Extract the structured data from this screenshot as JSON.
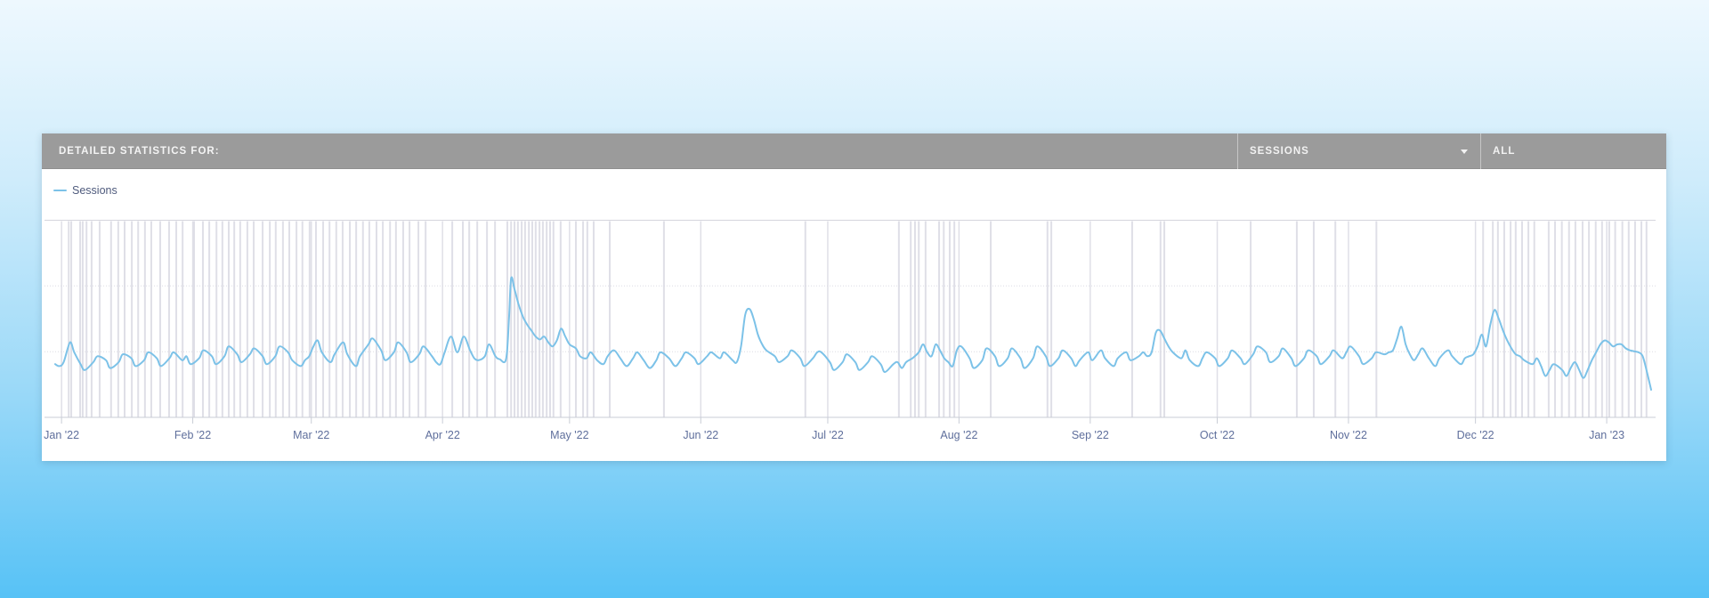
{
  "header": {
    "title": "DETAILED STATISTICS FOR:",
    "metric_dropdown": {
      "value": "SESSIONS"
    },
    "range_dropdown": {
      "value": "ALL"
    }
  },
  "legend": {
    "items": [
      {
        "label": "Sessions",
        "color": "#7CC2E8"
      }
    ]
  },
  "colors": {
    "series_line": "#7CC2E8",
    "header_bg": "#9B9B9B",
    "header_text": "#F2F2F2",
    "axis_label": "#5F6F9C",
    "legend_text": "#4F5B7D",
    "grid_event_line": "#DFDFE7",
    "grid_h_dotted": "#DCDCE4",
    "plot_border": "#D5D5DD",
    "axis_line": "#C9CDD6"
  },
  "chart_data": {
    "type": "line",
    "title": "",
    "xlabel": "",
    "ylabel": "",
    "legend_position": "top-left",
    "grid": "on",
    "y_axis": {
      "min": 0,
      "max": 100,
      "labels_visible": false,
      "gridline_values": [
        33.3,
        66.7
      ]
    },
    "x_axis": {
      "tick_labels": [
        "Jan '22",
        "Feb '22",
        "Mar '22",
        "Apr '22",
        "May '22",
        "Jun '22",
        "Jul '22",
        "Aug '22",
        "Sep '22",
        "Oct '22",
        "Nov '22",
        "Dec '22",
        "Jan '23"
      ],
      "tick_days": [
        1.5,
        32.5,
        60.5,
        91.5,
        121.5,
        152.5,
        182.5,
        213.5,
        244.5,
        274.5,
        305.5,
        335.5,
        366.5
      ],
      "domain_days": [
        0,
        377.7
      ]
    },
    "event_marker_days": [
      3.2,
      3.8,
      5.9,
      6.5,
      7.4,
      8.6,
      10.5,
      13.2,
      14.9,
      16.4,
      18.1,
      19.6,
      21.2,
      22.7,
      24.8,
      26.9,
      28.6,
      30.1,
      32.8,
      34.9,
      36.4,
      38.1,
      39.5,
      41,
      42.3,
      43.7,
      45.4,
      46.9,
      49,
      50.7,
      52.1,
      53.8,
      55.3,
      57,
      58.4,
      60.1,
      61.6,
      63.3,
      64.8,
      66.4,
      67.9,
      69.6,
      71.1,
      72.7,
      74.2,
      75.9,
      77.4,
      79.1,
      80.5,
      82.2,
      83.7,
      85.8,
      87.5,
      93.8,
      96.3,
      97.8,
      99.7,
      102,
      103.9,
      106.8,
      107.7,
      108.5,
      109.3,
      110.2,
      111,
      111.9,
      112.7,
      113.5,
      114.4,
      115.2,
      116.1,
      116.9,
      117.7,
      119.4,
      123,
      124.7,
      125.7,
      127.2,
      131,
      143.8,
      177.2,
      199.3,
      202.1,
      203.1,
      204,
      205.6,
      208.8,
      209.9,
      211.3,
      212.4,
      221,
      234.4,
      235.3,
      254.4,
      261.1,
      262,
      282.4,
      293.3,
      297.3,
      302.4,
      312.1,
      337.3,
      339.6,
      340.8,
      342.3,
      343.8,
      345,
      346.5,
      348,
      349.4,
      352.8,
      354.3,
      355.9,
      357.6,
      359.1,
      360.8,
      362.3,
      363.9,
      365.4,
      367.1,
      368.5,
      370.2,
      371.7,
      373.2,
      374.7,
      375.9
    ],
    "series": [
      {
        "name": "Sessions",
        "color": "#7CC2E8",
        "points": [
          [
            0,
            27
          ],
          [
            1,
            26
          ],
          [
            2,
            28
          ],
          [
            3.5,
            38
          ],
          [
            4.5,
            33
          ],
          [
            6,
            27
          ],
          [
            7,
            24
          ],
          [
            9,
            28
          ],
          [
            10,
            31
          ],
          [
            12,
            29
          ],
          [
            13,
            25
          ],
          [
            15,
            28
          ],
          [
            16,
            32
          ],
          [
            18,
            30
          ],
          [
            19,
            26
          ],
          [
            21,
            29
          ],
          [
            22,
            33
          ],
          [
            24,
            30
          ],
          [
            25,
            26
          ],
          [
            27,
            30
          ],
          [
            28,
            33
          ],
          [
            30,
            29
          ],
          [
            31,
            31
          ],
          [
            32,
            27
          ],
          [
            34,
            30
          ],
          [
            35,
            34
          ],
          [
            37,
            31
          ],
          [
            38,
            27
          ],
          [
            40,
            31
          ],
          [
            41,
            36
          ],
          [
            43,
            32
          ],
          [
            44,
            28
          ],
          [
            46,
            32
          ],
          [
            47,
            35
          ],
          [
            49,
            31
          ],
          [
            50,
            27
          ],
          [
            52,
            31
          ],
          [
            53,
            36
          ],
          [
            55,
            33
          ],
          [
            56,
            29
          ],
          [
            58,
            26
          ],
          [
            59,
            29
          ],
          [
            60,
            31
          ],
          [
            61,
            36
          ],
          [
            62,
            39
          ],
          [
            63,
            33
          ],
          [
            65,
            28
          ],
          [
            66,
            32
          ],
          [
            68,
            38
          ],
          [
            69,
            32
          ],
          [
            71,
            26
          ],
          [
            72,
            31
          ],
          [
            74,
            37
          ],
          [
            75,
            40
          ],
          [
            77,
            34
          ],
          [
            78,
            29
          ],
          [
            80,
            33
          ],
          [
            81,
            38
          ],
          [
            83,
            33
          ],
          [
            84,
            28
          ],
          [
            86,
            32
          ],
          [
            87,
            36
          ],
          [
            89,
            31
          ],
          [
            90,
            28
          ],
          [
            91,
            27
          ],
          [
            92,
            33
          ],
          [
            93.5,
            41
          ],
          [
            95,
            33
          ],
          [
            96.5,
            41
          ],
          [
            98,
            34
          ],
          [
            99,
            30
          ],
          [
            100,
            29
          ],
          [
            101.5,
            31
          ],
          [
            102.5,
            37
          ],
          [
            104,
            31
          ],
          [
            105,
            29.5
          ],
          [
            106.5,
            29.5
          ],
          [
            107.2,
            50
          ],
          [
            107.7,
            70.5
          ],
          [
            108.5,
            65
          ],
          [
            109.5,
            57
          ],
          [
            110.5,
            51
          ],
          [
            111.5,
            47
          ],
          [
            112.5,
            44
          ],
          [
            113.5,
            41
          ],
          [
            114.5,
            39.5
          ],
          [
            115.5,
            41
          ],
          [
            116.5,
            38
          ],
          [
            117.5,
            36
          ],
          [
            118.5,
            39
          ],
          [
            119.5,
            45
          ],
          [
            120.5,
            41
          ],
          [
            121.5,
            37
          ],
          [
            123,
            35
          ],
          [
            124,
            31
          ],
          [
            125.5,
            30
          ],
          [
            126.5,
            33
          ],
          [
            128,
            29
          ],
          [
            129.5,
            27
          ],
          [
            130.5,
            31
          ],
          [
            132,
            34
          ],
          [
            133.5,
            30
          ],
          [
            135,
            26
          ],
          [
            136.5,
            30
          ],
          [
            137.5,
            33
          ],
          [
            139,
            29
          ],
          [
            140.5,
            25
          ],
          [
            142,
            29
          ],
          [
            143,
            33
          ],
          [
            145,
            30
          ],
          [
            146.5,
            26
          ],
          [
            148,
            30
          ],
          [
            149,
            33
          ],
          [
            151,
            30
          ],
          [
            152,
            27
          ],
          [
            154,
            31
          ],
          [
            155,
            33
          ],
          [
            157,
            30
          ],
          [
            158,
            33
          ],
          [
            160,
            29
          ],
          [
            161,
            28
          ],
          [
            162,
            36
          ],
          [
            163,
            52
          ],
          [
            164,
            55
          ],
          [
            165,
            50
          ],
          [
            166,
            42
          ],
          [
            167,
            37
          ],
          [
            168,
            34
          ],
          [
            170,
            31
          ],
          [
            171,
            28
          ],
          [
            173,
            31
          ],
          [
            174,
            34
          ],
          [
            176,
            30
          ],
          [
            177,
            26
          ],
          [
            179,
            30
          ],
          [
            180,
            33
          ],
          [
            181,
            33
          ],
          [
            183,
            28
          ],
          [
            184,
            24
          ],
          [
            186,
            28
          ],
          [
            187,
            32
          ],
          [
            189,
            28
          ],
          [
            190,
            24
          ],
          [
            192,
            28
          ],
          [
            193,
            31
          ],
          [
            195,
            27
          ],
          [
            196,
            23
          ],
          [
            198,
            27
          ],
          [
            199,
            28
          ],
          [
            200,
            25
          ],
          [
            201,
            28
          ],
          [
            202.5,
            30
          ],
          [
            204,
            33
          ],
          [
            205,
            37
          ],
          [
            206,
            33
          ],
          [
            207,
            31
          ],
          [
            208,
            37
          ],
          [
            209,
            34
          ],
          [
            210,
            30
          ],
          [
            211,
            28
          ],
          [
            212,
            26
          ],
          [
            213,
            34
          ],
          [
            214,
            36
          ],
          [
            216,
            30
          ],
          [
            217,
            25
          ],
          [
            219,
            29
          ],
          [
            220,
            35
          ],
          [
            222,
            31
          ],
          [
            223,
            26
          ],
          [
            225,
            30
          ],
          [
            226,
            35
          ],
          [
            228,
            30
          ],
          [
            229,
            25
          ],
          [
            231,
            30
          ],
          [
            232,
            36
          ],
          [
            234,
            31
          ],
          [
            235,
            26
          ],
          [
            237,
            30
          ],
          [
            238,
            34
          ],
          [
            240,
            30
          ],
          [
            241,
            26
          ],
          [
            242,
            29
          ],
          [
            244,
            33
          ],
          [
            245,
            29
          ],
          [
            247,
            34
          ],
          [
            248,
            30
          ],
          [
            250,
            26
          ],
          [
            251,
            30
          ],
          [
            253,
            33
          ],
          [
            254,
            29
          ],
          [
            256,
            31
          ],
          [
            257,
            33
          ],
          [
            258,
            31
          ],
          [
            259,
            33
          ],
          [
            260,
            43
          ],
          [
            261,
            44
          ],
          [
            262,
            40
          ],
          [
            263,
            36
          ],
          [
            264,
            33
          ],
          [
            266,
            30
          ],
          [
            267,
            34
          ],
          [
            268,
            29
          ],
          [
            270,
            26
          ],
          [
            271,
            30
          ],
          [
            272,
            33
          ],
          [
            274,
            30
          ],
          [
            275,
            26
          ],
          [
            277,
            30
          ],
          [
            278,
            34
          ],
          [
            280,
            30
          ],
          [
            281,
            27
          ],
          [
            283,
            32
          ],
          [
            284,
            36
          ],
          [
            286,
            33
          ],
          [
            287,
            28
          ],
          [
            289,
            31
          ],
          [
            290,
            35
          ],
          [
            292,
            30
          ],
          [
            293,
            26
          ],
          [
            295,
            30
          ],
          [
            296,
            34
          ],
          [
            298,
            31
          ],
          [
            299,
            27
          ],
          [
            301,
            31
          ],
          [
            302,
            34
          ],
          [
            304,
            30
          ],
          [
            305,
            33
          ],
          [
            306,
            36
          ],
          [
            308,
            31
          ],
          [
            309,
            27
          ],
          [
            311,
            30
          ],
          [
            312,
            33
          ],
          [
            314,
            32
          ],
          [
            315,
            33
          ],
          [
            316,
            34
          ],
          [
            317,
            40
          ],
          [
            318,
            46
          ],
          [
            319,
            37
          ],
          [
            320,
            32
          ],
          [
            321,
            29
          ],
          [
            322,
            32
          ],
          [
            323,
            35
          ],
          [
            324.5,
            30
          ],
          [
            326,
            26
          ],
          [
            327,
            30
          ],
          [
            329,
            34
          ],
          [
            330,
            31
          ],
          [
            332,
            27
          ],
          [
            333,
            30
          ],
          [
            334,
            31
          ],
          [
            335,
            32
          ],
          [
            336,
            36
          ],
          [
            337,
            42
          ],
          [
            338,
            36
          ],
          [
            339,
            47
          ],
          [
            340,
            54.5
          ],
          [
            341,
            50
          ],
          [
            342,
            44
          ],
          [
            343,
            39
          ],
          [
            344,
            35
          ],
          [
            345,
            32
          ],
          [
            346,
            31
          ],
          [
            347,
            29
          ],
          [
            349,
            27
          ],
          [
            350,
            30
          ],
          [
            351,
            26
          ],
          [
            352,
            21
          ],
          [
            353,
            24
          ],
          [
            354,
            27
          ],
          [
            356,
            24
          ],
          [
            357,
            21
          ],
          [
            358,
            25
          ],
          [
            359,
            28
          ],
          [
            360,
            24
          ],
          [
            361,
            20
          ],
          [
            362,
            24
          ],
          [
            363,
            29
          ],
          [
            364,
            33
          ],
          [
            365,
            37
          ],
          [
            366,
            39
          ],
          [
            367,
            38
          ],
          [
            368,
            36
          ],
          [
            369,
            37
          ],
          [
            370,
            37
          ],
          [
            371,
            35
          ],
          [
            372,
            34
          ],
          [
            373,
            33.5
          ],
          [
            374,
            33
          ],
          [
            375,
            31
          ],
          [
            376,
            23
          ],
          [
            377,
            14
          ]
        ]
      }
    ]
  }
}
